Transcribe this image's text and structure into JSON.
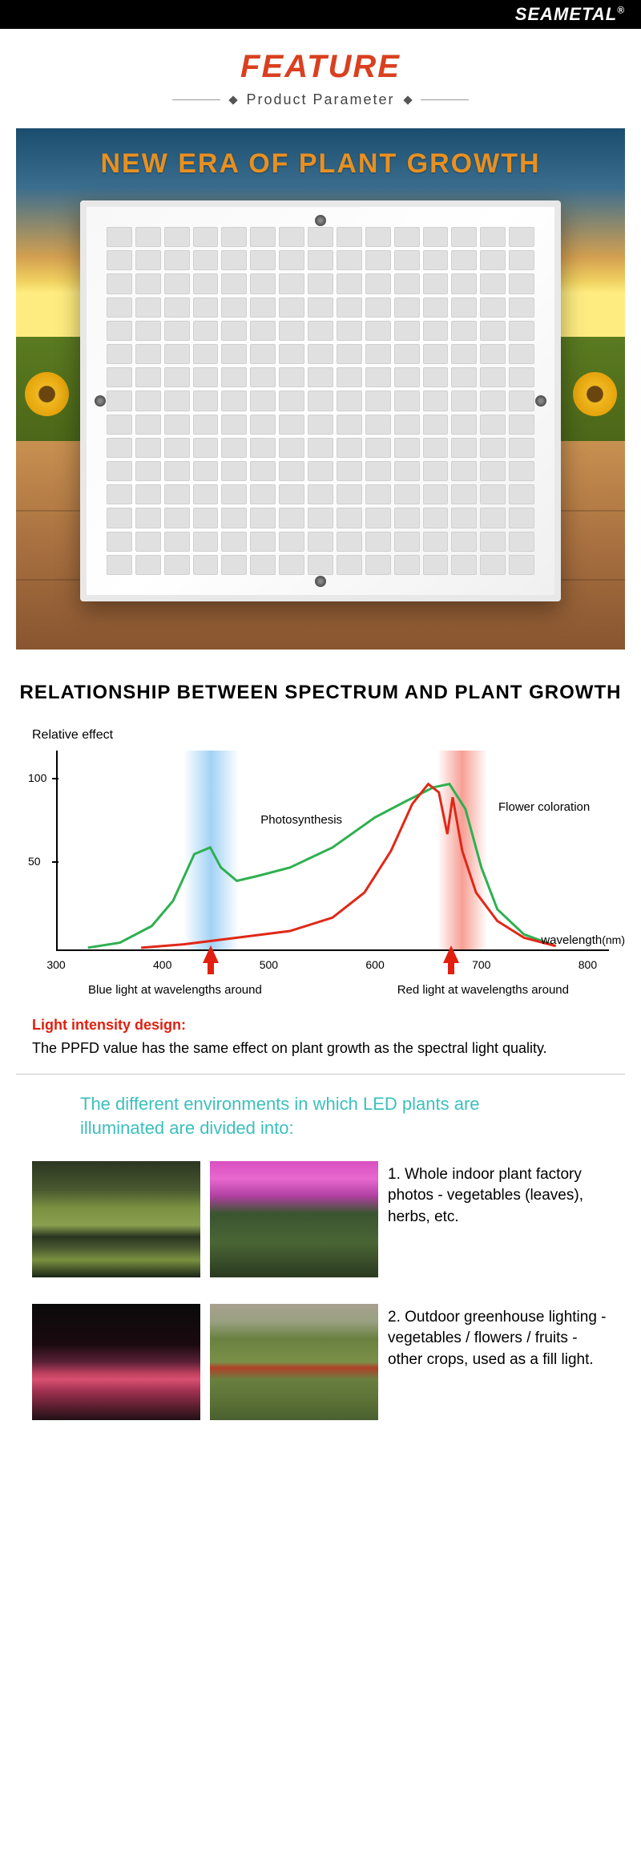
{
  "brand": "SEAMETAL",
  "header": {
    "title": "FEATURE",
    "subtitle": "Product  Parameter",
    "title_color": "#d94020"
  },
  "hero": {
    "headline": "NEW ERA OF PLANT GROWTH",
    "headline_color": "#e89020",
    "led_cols": 15,
    "led_rows": 15
  },
  "relationship": {
    "title": "RELATIONSHIP BETWEEN SPECTRUM AND PLANT GROWTH"
  },
  "chart": {
    "type": "line",
    "y_label": "Relative effect",
    "x_label": "wavelength",
    "x_unit": "(nm)",
    "y_ticks": [
      50,
      100
    ],
    "x_ticks": [
      300,
      400,
      500,
      600,
      700,
      800
    ],
    "xlim": [
      300,
      820
    ],
    "ylim": [
      0,
      120
    ],
    "label_photosynthesis": "Photosynthesis",
    "label_flower": "Flower  coloration",
    "blue_band": {
      "center_nm": 440,
      "color": "rgba(100,180,240,0.6)"
    },
    "red_band": {
      "center_nm": 670,
      "color": "rgba(240,80,60,0.55)"
    },
    "line_width": 3,
    "series_green": {
      "color": "#2eb050",
      "points": [
        [
          330,
          2
        ],
        [
          360,
          5
        ],
        [
          390,
          15
        ],
        [
          410,
          30
        ],
        [
          430,
          58
        ],
        [
          445,
          62
        ],
        [
          455,
          50
        ],
        [
          470,
          42
        ],
        [
          490,
          45
        ],
        [
          520,
          50
        ],
        [
          560,
          62
        ],
        [
          600,
          80
        ],
        [
          630,
          90
        ],
        [
          655,
          98
        ],
        [
          670,
          100
        ],
        [
          685,
          85
        ],
        [
          700,
          50
        ],
        [
          715,
          25
        ],
        [
          740,
          10
        ],
        [
          770,
          3
        ]
      ]
    },
    "series_red": {
      "color": "#e02818",
      "points": [
        [
          380,
          2
        ],
        [
          420,
          4
        ],
        [
          470,
          8
        ],
        [
          520,
          12
        ],
        [
          560,
          20
        ],
        [
          590,
          35
        ],
        [
          615,
          60
        ],
        [
          635,
          88
        ],
        [
          650,
          100
        ],
        [
          660,
          95
        ],
        [
          668,
          70
        ],
        [
          673,
          92
        ],
        [
          682,
          60
        ],
        [
          695,
          35
        ],
        [
          715,
          18
        ],
        [
          740,
          8
        ],
        [
          770,
          3
        ]
      ]
    },
    "blue_caption": "Blue light at wavelengths around",
    "red_caption": "Red light at wavelengths around"
  },
  "intensity": {
    "title": "Light intensity design:",
    "title_color": "#e02010",
    "text": "The PPFD value has the same effect on plant growth as the spectral light quality."
  },
  "environments": {
    "title": "The different environments in which LED plants are illuminated are divided into:",
    "title_color": "#3cbfbf",
    "items": [
      {
        "text": "1. Whole indoor plant factory photos - vegetables (leaves), herbs, etc."
      },
      {
        "text": "2. Outdoor greenhouse lighting - vegetables / flowers / fruits - other crops, used as a fill light."
      }
    ]
  }
}
